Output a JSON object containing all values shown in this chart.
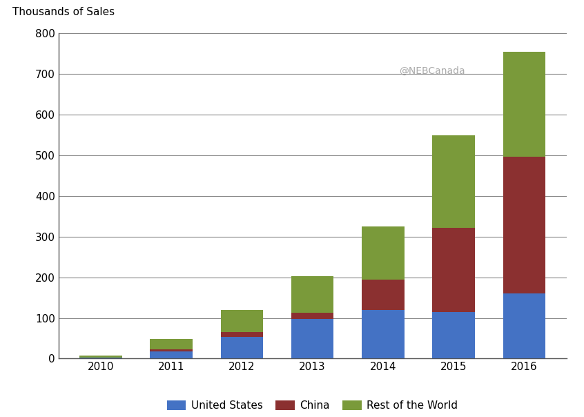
{
  "years": [
    "2010",
    "2011",
    "2012",
    "2013",
    "2014",
    "2015",
    "2016"
  ],
  "united_states": [
    2,
    18,
    53,
    97,
    120,
    115,
    160
  ],
  "china": [
    1,
    5,
    12,
    15,
    75,
    207,
    337
  ],
  "rest_of_world": [
    4,
    25,
    55,
    90,
    130,
    228,
    257
  ],
  "color_us": "#4472C4",
  "color_china": "#8B3030",
  "color_row": "#7A9A3A",
  "ylabel": "Thousands of Sales",
  "ylim": [
    0,
    800
  ],
  "yticks": [
    0,
    100,
    200,
    300,
    400,
    500,
    600,
    700,
    800
  ],
  "legend_labels": [
    "United States",
    "China",
    "Rest of the World"
  ],
  "annotation": "@NEBCanada",
  "background_color": "#FFFFFF",
  "grid_color": "#888888"
}
